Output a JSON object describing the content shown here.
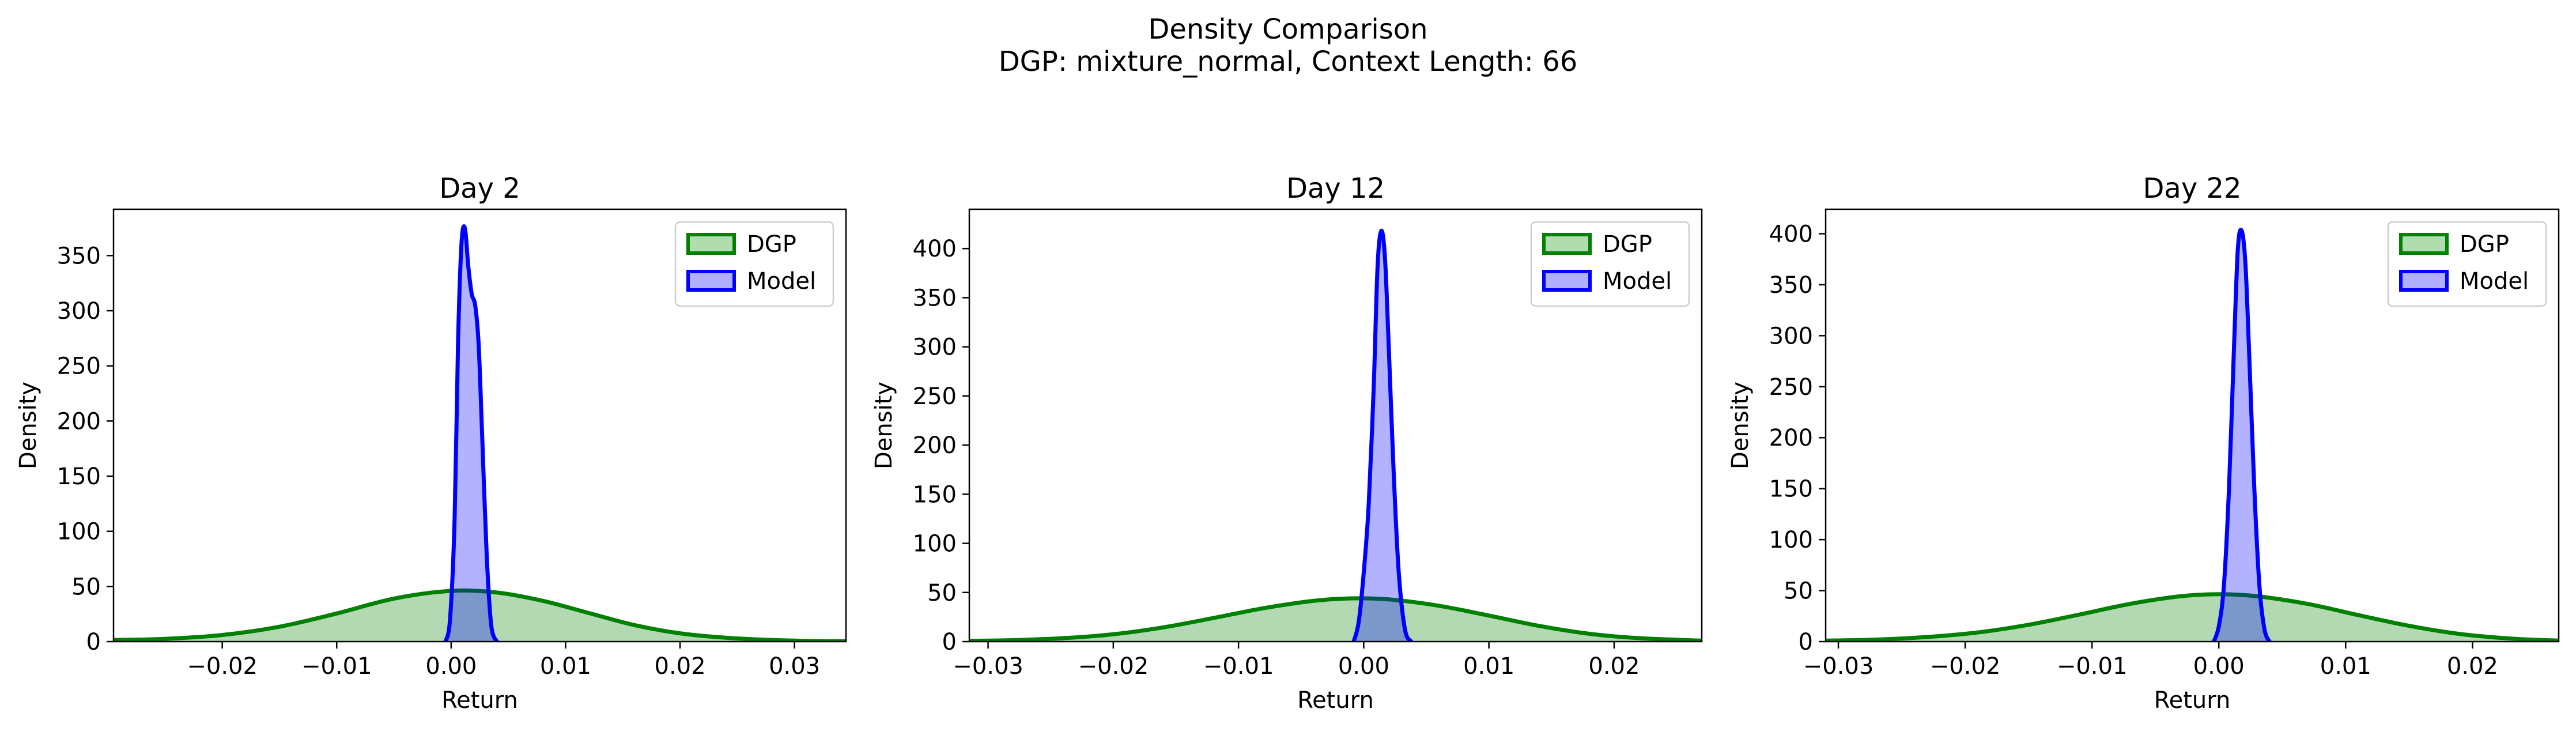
{
  "figure": {
    "suptitle_line1": "Density Comparison",
    "suptitle_line2": "DGP: mixture_normal, Context Length: 66"
  },
  "colors": {
    "dgp_line": "#008000",
    "dgp_fill": "#b0dcae",
    "model_line": "#0000ff",
    "model_fill": "#b0b0ff",
    "overlap_fill": "#6e8ab8"
  },
  "chart_data": [
    {
      "type": "area",
      "title": "Day 2",
      "xlabel": "Return",
      "ylabel": "Density",
      "xlim": [
        -0.0295,
        0.0345
      ],
      "ylim": [
        0,
        392
      ],
      "xticks": [
        -0.02,
        -0.01,
        0.0,
        0.01,
        0.02,
        0.03
      ],
      "xtick_labels": [
        "−0.02",
        "−0.01",
        "0.00",
        "0.01",
        "0.02",
        "0.03"
      ],
      "yticks": [
        0,
        50,
        100,
        150,
        200,
        250,
        300,
        350
      ],
      "ytick_labels": [
        "0",
        "50",
        "100",
        "150",
        "200",
        "250",
        "300",
        "350"
      ],
      "legend": {
        "position": "top-right",
        "entries": [
          "DGP",
          "Model"
        ]
      },
      "series": [
        {
          "name": "DGP",
          "x": [
            -0.0295,
            -0.025,
            -0.02,
            -0.015,
            -0.01,
            -0.005,
            0.0,
            0.004,
            0.008,
            0.012,
            0.016,
            0.02,
            0.024,
            0.028,
            0.032,
            0.0345
          ],
          "y": [
            1.5,
            2.5,
            6,
            13.5,
            25.5,
            39,
            46,
            44.5,
            37,
            26,
            15,
            7.5,
            3.5,
            1.5,
            0.5,
            0.3
          ]
        },
        {
          "name": "Model",
          "x": [
            -0.0005,
            -0.0001,
            0.0003,
            0.0006,
            0.0009,
            0.0012,
            0.0015,
            0.0018,
            0.0021,
            0.0024,
            0.0027,
            0.0031,
            0.0035,
            0.004
          ],
          "y": [
            0,
            20,
            110,
            270,
            360,
            375,
            340,
            315,
            305,
            270,
            190,
            80,
            15,
            0
          ]
        }
      ]
    },
    {
      "type": "area",
      "title": "Day 12",
      "xlabel": "Return",
      "ylabel": "Density",
      "xlim": [
        -0.0315,
        0.027
      ],
      "ylim": [
        0,
        440
      ],
      "xticks": [
        -0.03,
        -0.02,
        -0.01,
        0.0,
        0.01,
        0.02
      ],
      "xtick_labels": [
        "−0.03",
        "−0.02",
        "−0.01",
        "0.00",
        "0.01",
        "0.02"
      ],
      "yticks": [
        0,
        50,
        100,
        150,
        200,
        250,
        300,
        350,
        400
      ],
      "ytick_labels": [
        "0",
        "50",
        "100",
        "150",
        "200",
        "250",
        "300",
        "350",
        "400"
      ],
      "legend": {
        "position": "top-right",
        "entries": [
          "DGP",
          "Model"
        ]
      },
      "series": [
        {
          "name": "DGP",
          "x": [
            -0.0315,
            -0.028,
            -0.024,
            -0.02,
            -0.016,
            -0.012,
            -0.008,
            -0.004,
            -0.001,
            0.002,
            0.006,
            0.01,
            0.014,
            0.018,
            0.022,
            0.027
          ],
          "y": [
            0.8,
            1.5,
            3.5,
            7.5,
            14.5,
            24,
            34,
            41.5,
            44,
            43,
            36.5,
            26.5,
            16,
            8,
            3.5,
            1
          ]
        },
        {
          "name": "Model",
          "x": [
            -0.0008,
            -0.0004,
            0.0,
            0.0004,
            0.0008,
            0.0011,
            0.0014,
            0.0017,
            0.002,
            0.0024,
            0.0028,
            0.0033,
            0.0038
          ],
          "y": [
            0,
            20,
            70,
            140,
            260,
            380,
            418,
            390,
            300,
            170,
            70,
            12,
            0
          ]
        }
      ]
    },
    {
      "type": "area",
      "title": "Day 22",
      "xlabel": "Return",
      "ylabel": "Density",
      "xlim": [
        -0.031,
        0.0268
      ],
      "ylim": [
        0,
        424
      ],
      "xticks": [
        -0.03,
        -0.02,
        -0.01,
        0.0,
        0.01,
        0.02
      ],
      "xtick_labels": [
        "−0.03",
        "−0.02",
        "−0.01",
        "0.00",
        "0.01",
        "0.02"
      ],
      "yticks": [
        0,
        50,
        100,
        150,
        200,
        250,
        300,
        350,
        400
      ],
      "ytick_labels": [
        "0",
        "50",
        "100",
        "150",
        "200",
        "250",
        "300",
        "350",
        "400"
      ],
      "legend": {
        "position": "top-right",
        "entries": [
          "DGP",
          "Model"
        ]
      },
      "series": [
        {
          "name": "DGP",
          "x": [
            -0.031,
            -0.027,
            -0.023,
            -0.019,
            -0.015,
            -0.011,
            -0.007,
            -0.003,
            0.0,
            0.003,
            0.007,
            0.011,
            0.015,
            0.019,
            0.023,
            0.0268
          ],
          "y": [
            1,
            2,
            4.5,
            9,
            16.5,
            26.5,
            37,
            44.5,
            46.5,
            44.5,
            37,
            26,
            15.5,
            7.5,
            3,
            1
          ]
        },
        {
          "name": "Model",
          "x": [
            -0.0004,
            0.0,
            0.0004,
            0.0008,
            0.0012,
            0.0015,
            0.0018,
            0.0021,
            0.0024,
            0.0028,
            0.0032,
            0.0036,
            0.004
          ],
          "y": [
            0,
            15,
            55,
            150,
            290,
            385,
            403,
            370,
            280,
            150,
            55,
            12,
            0
          ]
        }
      ]
    }
  ]
}
